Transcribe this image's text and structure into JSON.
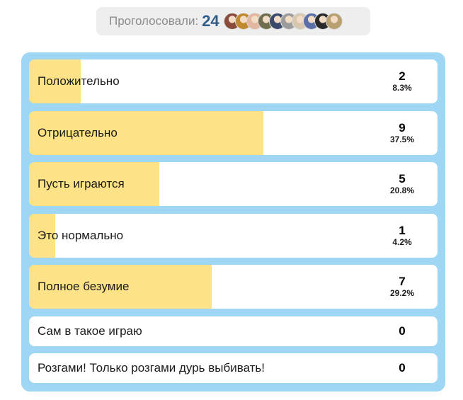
{
  "header": {
    "label": "Проголосовали:",
    "count": "24",
    "avatars": [
      {
        "name": "voter-avatar-1",
        "color": "#8a4b3a"
      },
      {
        "name": "voter-avatar-2",
        "color": "#c0892e"
      },
      {
        "name": "voter-avatar-3",
        "color": "#e3b6a0"
      },
      {
        "name": "voter-avatar-4",
        "color": "#6f6f4f"
      },
      {
        "name": "voter-avatar-5",
        "color": "#3a4a6a"
      },
      {
        "name": "voter-avatar-6",
        "color": "#9c9c9c"
      },
      {
        "name": "voter-avatar-7",
        "color": "#d9c7b0"
      },
      {
        "name": "voter-avatar-8",
        "color": "#5b6fa8"
      },
      {
        "name": "voter-avatar-9",
        "color": "#2a2a2a"
      },
      {
        "name": "voter-avatar-10",
        "color": "#b8a070"
      }
    ]
  },
  "poll": {
    "colors": {
      "frame": "#9fd6f4",
      "bar": "#fde287",
      "row": "#ffffff"
    },
    "options": [
      {
        "label": "Положительно",
        "count": "2",
        "percent": "8.3%",
        "share": 0.083
      },
      {
        "label": "Отрицательно",
        "count": "9",
        "percent": "37.5%",
        "share": 0.375
      },
      {
        "label": "Пусть играются",
        "count": "5",
        "percent": "20.8%",
        "share": 0.208
      },
      {
        "label": "Это нормально",
        "count": "1",
        "percent": "4.2%",
        "share": 0.042
      },
      {
        "label": "Полное безумие",
        "count": "7",
        "percent": "29.2%",
        "share": 0.292
      },
      {
        "label": "Сам в такое играю",
        "count": "0",
        "percent": "",
        "share": 0
      },
      {
        "label": "Розгами! Только розгами дурь выбивать!",
        "count": "0",
        "percent": "",
        "share": 0
      }
    ]
  }
}
